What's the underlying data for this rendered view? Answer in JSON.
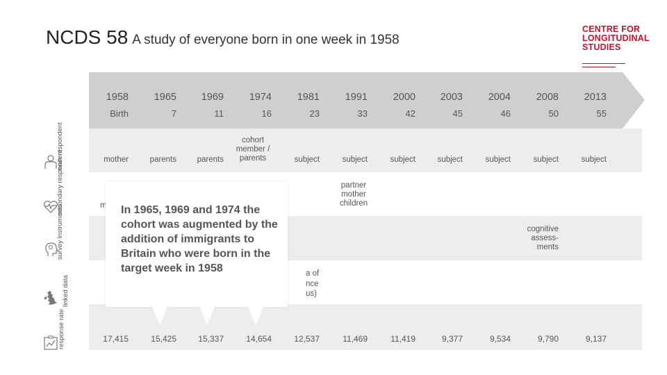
{
  "header": {
    "title": "NCDS 58",
    "subtitle": "A study of everyone born in one week in 1958"
  },
  "logo": {
    "line1": "CENTRE FOR",
    "line2": "LONGITUDINAL",
    "line3": "STUDIES",
    "color": "#c8102e"
  },
  "timeline": {
    "years": [
      "1958",
      "1965",
      "1969",
      "1974",
      "1981",
      "1991",
      "2000",
      "2003",
      "2004",
      "2008",
      "2013"
    ],
    "ages": [
      "Birth",
      "7",
      "11",
      "16",
      "23",
      "33",
      "42",
      "45",
      "46",
      "50",
      "55"
    ]
  },
  "sidebar": {
    "main_respondent": "main respondent",
    "secondary_respondent": "secondary respondent",
    "survey_instruments": "survey instruments",
    "linked_data": "linked data",
    "response_rate": "response rate"
  },
  "main_respondents": [
    "mother",
    "parents",
    "parents",
    "cohort member / parents",
    "subject",
    "subject",
    "subject",
    "subject",
    "subject",
    "subject",
    "subject"
  ],
  "secondary": {
    "1958_fragment": "m",
    "1991": "partner mother children"
  },
  "survey": {
    "2008": "cognitive assess-ments"
  },
  "linked": {
    "frag1": "a of",
    "frag2": "nce",
    "frag3": "us)"
  },
  "response_rates": [
    "17,415",
    "15,425",
    "15,337",
    "14,654",
    "12,537",
    "11,469",
    "11,419",
    "9,377",
    "9,534",
    "9,790",
    "9,137"
  ],
  "popup": {
    "text": "In 1965, 1969 and 1974 the cohort was augmented by the addition of immigrants to Britain who were born in the target week in 1958"
  },
  "colors": {
    "timeline_bg": "#d0cfcf",
    "band": "#ededed",
    "accent": "#c8102e"
  }
}
